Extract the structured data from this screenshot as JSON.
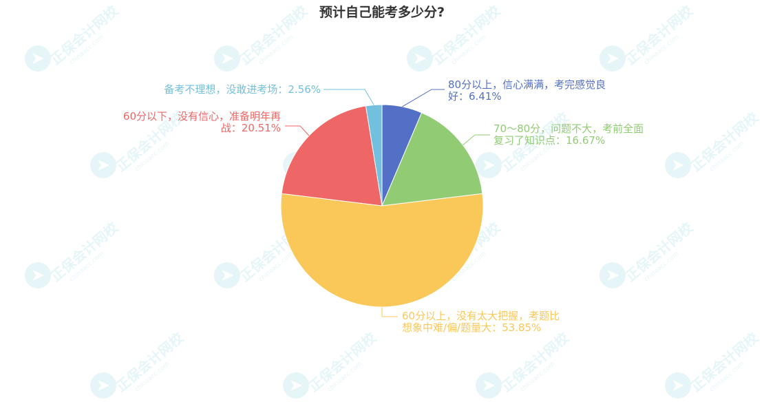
{
  "chart_data": {
    "type": "pie",
    "title": "预计自己能考多少分?",
    "slices": [
      {
        "label": "80分以上，信心满满，考完感觉良好：6.41%",
        "label_lines": [
          "80分以上，信心满满，考完感觉良",
          "好：6.41%"
        ],
        "value": 6.41,
        "color": "#5470c6"
      },
      {
        "label": "70～80分，问题不大，考前全面复习了知识点：16.67%",
        "label_lines": [
          "70～80分，问题不大，考前全面",
          "复习了知识点：16.67%"
        ],
        "value": 16.67,
        "color": "#91cc75"
      },
      {
        "label": "60分以上，没有太大把握，考题比想象中难/偏/题量大：53.85%",
        "label_lines": [
          "60分以上，没有太大把握，考题比",
          "想象中难/偏/题量大：53.85%"
        ],
        "value": 53.85,
        "color": "#fac858"
      },
      {
        "label": "60分以下，没有信心，准备明年再战：20.51%",
        "label_lines": [
          "60分以下，没有信心，准备明年再",
          "战：20.51%"
        ],
        "value": 20.51,
        "color": "#ee6666"
      },
      {
        "label": "备考不理想，没敢进考场：2.56%",
        "label_lines": [
          "备考不理想，没敢进考场：2.56%"
        ],
        "value": 2.56,
        "color": "#73c0de"
      }
    ],
    "start_angle": "top",
    "direction": "clockwise",
    "legend": "none"
  },
  "watermark": {
    "brand": "正保会计网校",
    "url": "chinaacc.com"
  }
}
